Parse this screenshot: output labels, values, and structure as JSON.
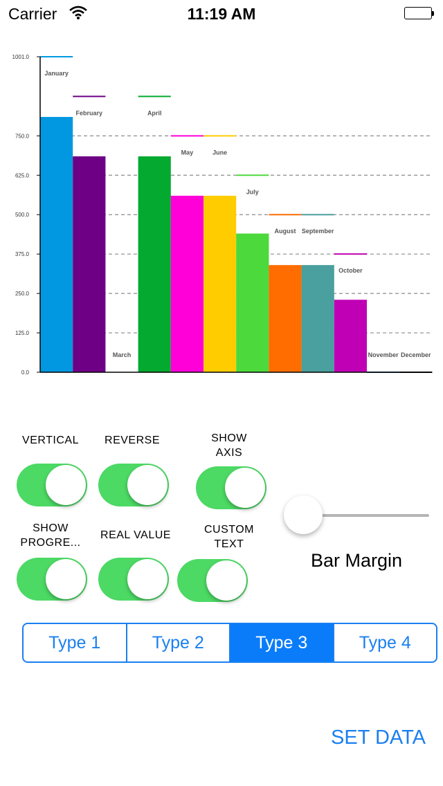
{
  "status_bar": {
    "carrier": "Carrier",
    "time": "11:19 AM",
    "wifi_icon": "wifi-icon",
    "battery_icon": "battery-icon"
  },
  "chart_data": {
    "type": "bar",
    "categories": [
      "January",
      "February",
      "March",
      "April",
      "May",
      "June",
      "July",
      "August",
      "September",
      "October",
      "November",
      "December"
    ],
    "values": [
      810,
      685,
      0,
      685,
      560,
      560,
      440,
      340,
      340,
      230,
      0,
      0
    ],
    "marker_values": [
      1001,
      875,
      0,
      875,
      750,
      750,
      625,
      500,
      500,
      375,
      0,
      0
    ],
    "colors": [
      "#0198e1",
      "#6e0085",
      "#ffffff",
      "#04aa30",
      "#ff00d9",
      "#ffcc00",
      "#4cd93c",
      "#ff6d00",
      "#49a09e",
      "#c000b4",
      "#2b5e8f",
      "#111111"
    ],
    "marker_colors": [
      "#0198e1",
      "#6e0085",
      "#ffffff",
      "#04aa30",
      "#ff00d9",
      "#ffcc00",
      "#4cd93c",
      "#ff6d00",
      "#49a09e",
      "#c000b4",
      "#2b5e8f",
      "#111111"
    ],
    "y_ticks": [
      "0.0",
      "125.0",
      "250.0",
      "375.0",
      "500.0",
      "625.0",
      "750.0",
      "1001.0"
    ],
    "ylim": [
      0,
      1001
    ],
    "grid": true
  },
  "controls": {
    "vertical": "VERTICAL",
    "reverse": "REVERSE",
    "show_axis_1": "SHOW",
    "show_axis_2": "AXIS",
    "show_progress_1": "SHOW",
    "show_progress_2": "PROGRE...",
    "real_value": "REAL VALUE",
    "custom_text_1": "CUSTOM",
    "custom_text_2": "TEXT",
    "bar_margin": "Bar Margin",
    "switch_color": "#4cd964"
  },
  "segments": [
    "Type 1",
    "Type 2",
    "Type 3",
    "Type 4"
  ],
  "selected_segment": "Type 3",
  "set_data": "SET DATA",
  "accent": "#1a7ff0"
}
